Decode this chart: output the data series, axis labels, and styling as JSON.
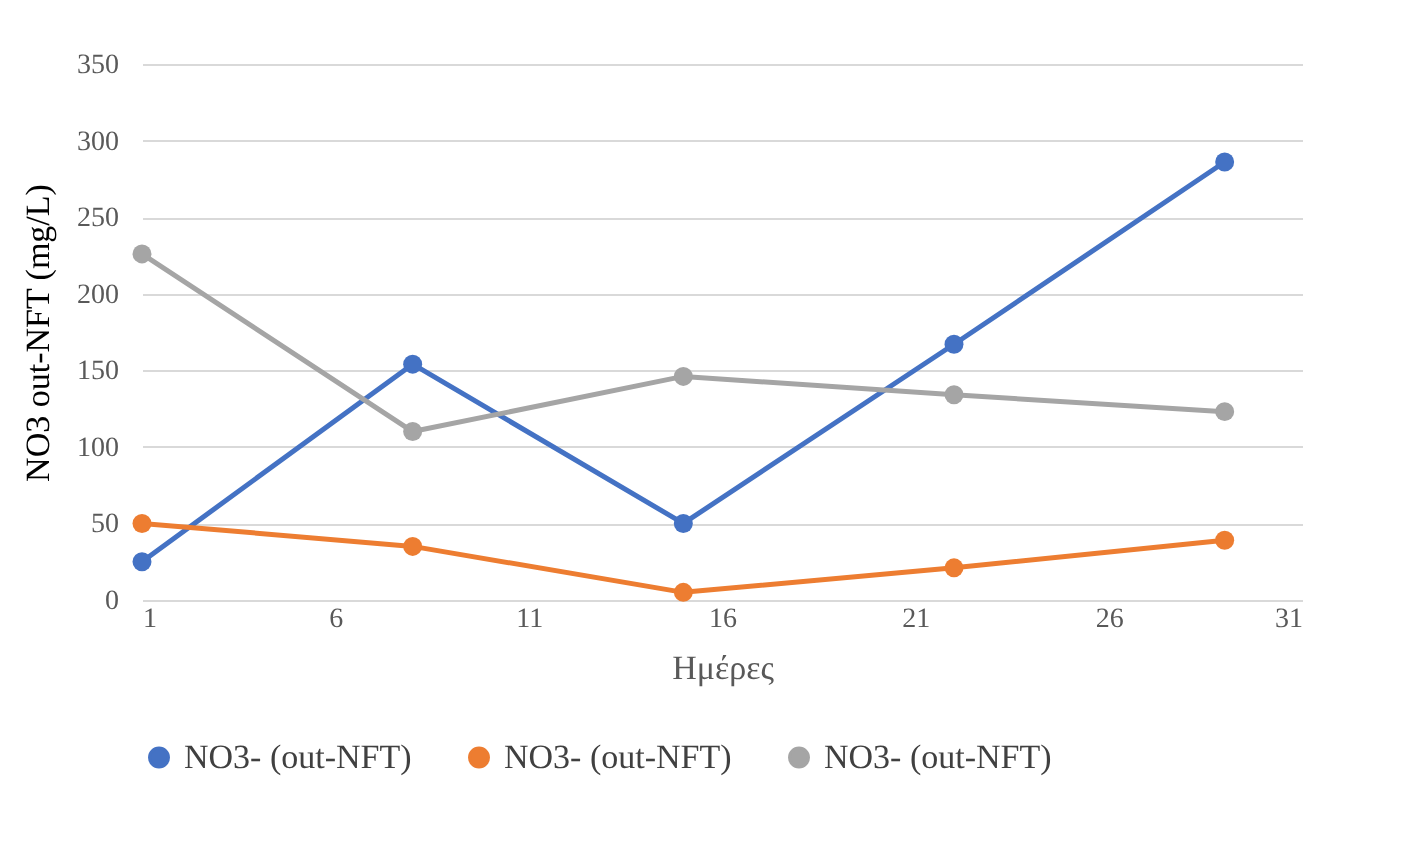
{
  "chart_data": {
    "type": "line",
    "xlabel": "Ημέρες",
    "ylabel": "NO3 out-NFT (mg/L)",
    "x": [
      1,
      8,
      15,
      22,
      29
    ],
    "series": [
      {
        "name": "NO3- (out-NFT)",
        "color": "#4472c4",
        "values": [
          25,
          154,
          50,
          167,
          286
        ]
      },
      {
        "name": "NO3- (out-NFT)",
        "color": "#ed7d31",
        "values": [
          50,
          35,
          5,
          21,
          39
        ]
      },
      {
        "name": "NO3- (out-NFT)",
        "color": "#a5a5a5",
        "values": [
          226,
          110,
          146,
          134,
          123
        ]
      }
    ],
    "xlim": [
      1,
      31
    ],
    "xticks": [
      1,
      6,
      11,
      16,
      21,
      26,
      31
    ],
    "ylim": [
      0,
      350
    ],
    "yticks": [
      0,
      50,
      100,
      150,
      200,
      250,
      300,
      350
    ],
    "grid": "y",
    "legend": "bottom",
    "marker": "circle",
    "line_style": "solid"
  }
}
